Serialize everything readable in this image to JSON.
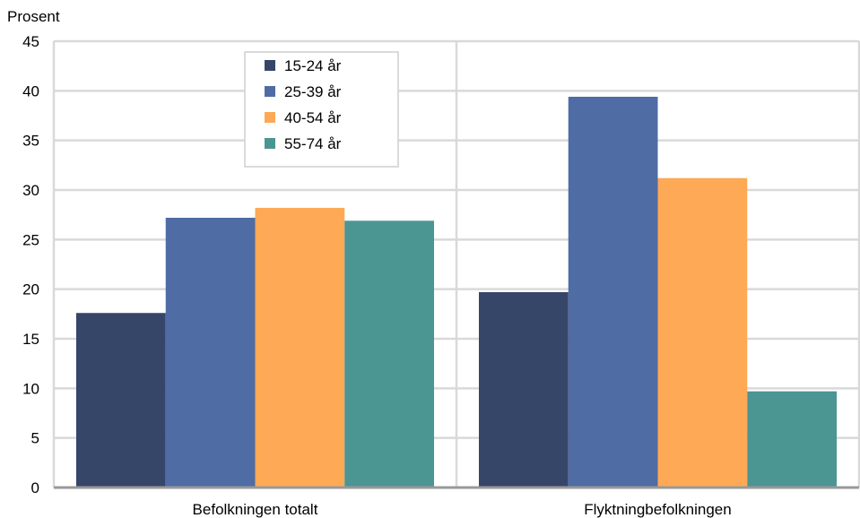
{
  "chart_data": {
    "type": "bar",
    "ylabel": "Prosent",
    "ylim": [
      0,
      45
    ],
    "yticks": [
      0,
      5,
      10,
      15,
      20,
      25,
      30,
      35,
      40,
      45
    ],
    "categories": [
      "Befolkningen totalt",
      "Flyktningbefolkningen"
    ],
    "series": [
      {
        "name": "15-24 år",
        "color": "#364669",
        "values": [
          17.6,
          19.7
        ]
      },
      {
        "name": "25-39 år",
        "color": "#4F6CA4",
        "values": [
          27.2,
          39.4
        ]
      },
      {
        "name": "40-54 år",
        "color": "#FDA955",
        "values": [
          28.2,
          31.2
        ]
      },
      {
        "name": "55-74 år",
        "color": "#4B9593",
        "values": [
          26.9,
          9.7
        ]
      }
    ],
    "grid": true,
    "legend_position": "top-left inside"
  }
}
